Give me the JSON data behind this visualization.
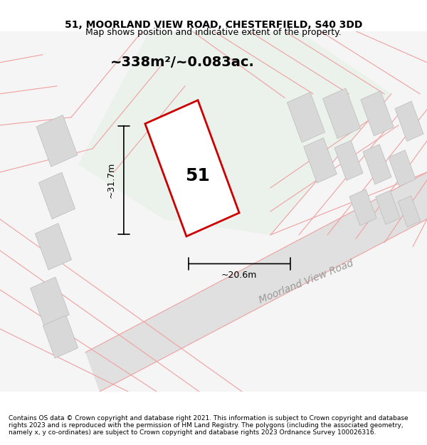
{
  "title": "51, MOORLAND VIEW ROAD, CHESTERFIELD, S40 3DD",
  "subtitle": "Map shows position and indicative extent of the property.",
  "area_label": "~338m²/~0.083ac.",
  "number_label": "51",
  "width_label": "~20.6m",
  "height_label": "~31.7m",
  "road_label": "Moorland View Road",
  "footer_text": "Contains OS data © Crown copyright and database right 2021. This information is subject to Crown copyright and database rights 2023 and is reproduced with the permission of HM Land Registry. The polygons (including the associated geometry, namely x, y co-ordinates) are subject to Crown copyright and database rights 2023 Ordnance Survey 100026316.",
  "background_color": "#ffffff",
  "map_background": "#f8f8f8",
  "highlight_fill": "#f0f4f0",
  "plot_outline_color": "#cc0000",
  "road_color": "#e8e8e8",
  "building_color": "#d8d8d8",
  "boundary_color": "#f0a0a0",
  "dim_color": "#000000"
}
